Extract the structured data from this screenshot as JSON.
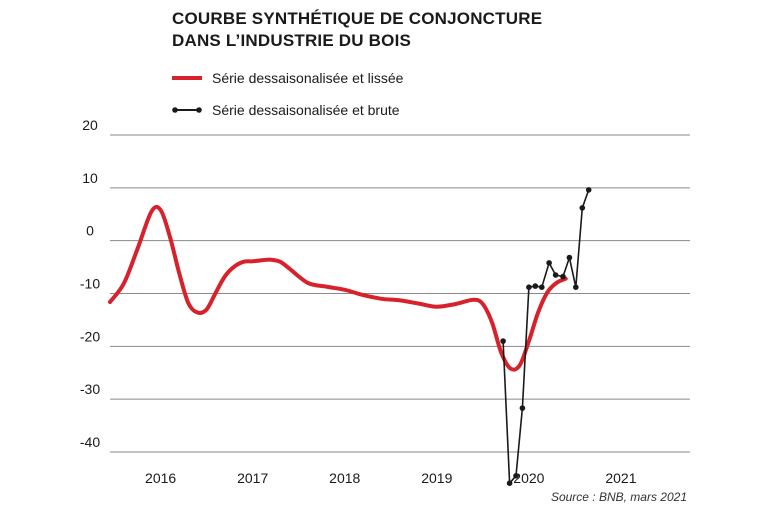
{
  "chart_data": {
    "type": "line",
    "title_line1": "COURBE SYNTHÉTIQUE DE CONJONCTURE",
    "title_line2": "DANS L’INDUSTRIE DU BOIS",
    "source": "Source : BNB, mars 2021",
    "ylim": [
      -40,
      20
    ],
    "yticks": [
      "20",
      "10",
      "0",
      "-10",
      "-20",
      "-30",
      "-40"
    ],
    "ytick_values": [
      20,
      10,
      0,
      -10,
      -20,
      -30,
      -40
    ],
    "xlim": [
      2015.45,
      2021.75
    ],
    "xticks": [
      "2016",
      "2017",
      "2018",
      "2019",
      "2020",
      "2021"
    ],
    "xtick_values": [
      2016,
      2017,
      2018,
      2019,
      2020,
      2021
    ],
    "grid": true,
    "legend_position": "top-left",
    "series": [
      {
        "name": "Série dessaisonalisée et lissée",
        "color": "#d7212b",
        "style": "smooth",
        "x": [
          2015.45,
          2015.6,
          2015.75,
          2015.9,
          2016.0,
          2016.1,
          2016.2,
          2016.3,
          2016.4,
          2016.5,
          2016.6,
          2016.7,
          2016.8,
          2016.9,
          2017.0,
          2017.1,
          2017.2,
          2017.3,
          2017.4,
          2017.6,
          2017.8,
          2018.0,
          2018.2,
          2018.4,
          2018.6,
          2018.8,
          2019.0,
          2019.2,
          2019.4,
          2019.5,
          2019.6,
          2019.7,
          2019.8,
          2019.9,
          2020.0,
          2020.1,
          2020.2,
          2020.3,
          2020.4
        ],
        "values": [
          -11.6,
          -8.1,
          -1.5,
          5.5,
          5.8,
          0.8,
          -6.0,
          -11.8,
          -13.6,
          -13.0,
          -9.8,
          -6.7,
          -4.9,
          -4.0,
          -3.9,
          -3.7,
          -3.6,
          -4.0,
          -5.3,
          -8.0,
          -8.7,
          -9.3,
          -10.3,
          -11.0,
          -11.3,
          -11.9,
          -12.5,
          -12.0,
          -11.2,
          -12.0,
          -15.5,
          -21.2,
          -24.2,
          -23.6,
          -19.0,
          -13.6,
          -9.8,
          -8.0,
          -7.2
        ]
      },
      {
        "name": "Série dessaisonalisée et brute",
        "color": "#1a1a1a",
        "style": "markers",
        "x": [
          2019.72,
          2019.79,
          2019.86,
          2019.93,
          2020.0,
          2020.07,
          2020.14,
          2020.22,
          2020.29,
          2020.37,
          2020.44,
          2020.51,
          2020.58,
          2020.65
        ],
        "values": [
          -19.0,
          -45.9,
          -44.5,
          -31.7,
          -8.8,
          -8.6,
          -8.8,
          -4.2,
          -6.5,
          -6.8,
          -3.2,
          -8.8,
          6.2,
          9.6
        ]
      }
    ]
  }
}
